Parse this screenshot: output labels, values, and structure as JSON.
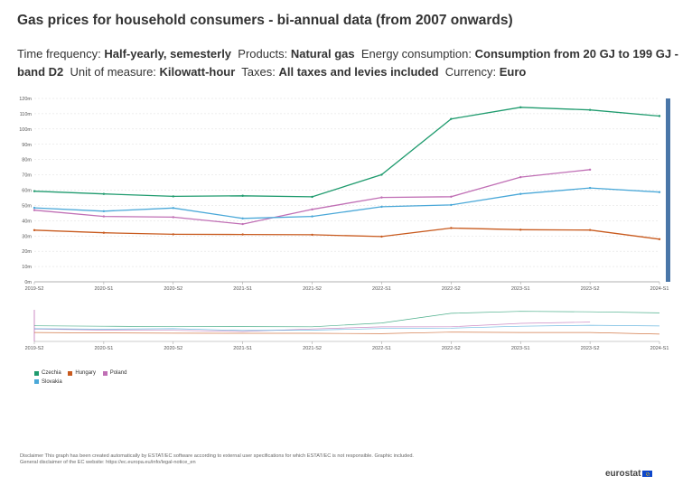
{
  "header": {
    "title": "Gas prices for household consumers - bi-annual data (from 2007 onwards)",
    "filters": [
      {
        "label": "Time frequency:",
        "value": "Half-yearly, semesterly"
      },
      {
        "label": "Products:",
        "value": "Natural gas"
      },
      {
        "label": "Energy consumption:",
        "value": "Consumption from 20 GJ to 199 GJ - band D2"
      },
      {
        "label": "Unit of measure:",
        "value": "Kilowatt-hour"
      },
      {
        "label": "Taxes:",
        "value": "All taxes and levies included"
      },
      {
        "label": "Currency:",
        "value": "Euro"
      }
    ]
  },
  "chart_data": {
    "type": "line",
    "categories": [
      "2019-S2",
      "2020-S1",
      "2020-S2",
      "2021-S1",
      "2021-S2",
      "2022-S1",
      "2022-S2",
      "2023-S1",
      "2023-S2",
      "2024-S1"
    ],
    "y_ticks": [
      "0m",
      "10m",
      "20m",
      "30m",
      "40m",
      "50m",
      "60m",
      "70m",
      "80m",
      "90m",
      "100m",
      "110m",
      "120m"
    ],
    "ylim": [
      0,
      0.12
    ],
    "series": [
      {
        "name": "Czechia",
        "color": "#1f9b6e",
        "values": [
          0.0593,
          0.0575,
          0.0559,
          0.0563,
          0.0556,
          0.0701,
          0.1066,
          0.1142,
          0.1125,
          0.1085
        ]
      },
      {
        "name": "Hungary",
        "color": "#c85a1e",
        "values": [
          0.0338,
          0.0321,
          0.0311,
          0.031,
          0.0308,
          0.0296,
          0.0352,
          0.0341,
          0.0339,
          0.0279
        ]
      },
      {
        "name": "Poland",
        "color": "#c06fb5",
        "values": [
          0.0469,
          0.0428,
          0.0423,
          0.0378,
          0.0474,
          0.0552,
          0.0557,
          0.0685,
          0.0734,
          null
        ]
      },
      {
        "name": "Slovakia",
        "color": "#4aa8d8",
        "values": [
          0.0484,
          0.0462,
          0.0483,
          0.0415,
          0.0428,
          0.0491,
          0.0503,
          0.0575,
          0.0614,
          0.0587
        ]
      }
    ]
  },
  "legend": {
    "items": [
      "Czechia",
      "Hungary",
      "Poland",
      "Slovakia"
    ]
  },
  "footer": {
    "disclaimer_line1": "Disclaimer This graph has been created automatically by ESTAT/EC software according to external user specifications for which ESTAT/EC is not responsible. Graphic included.",
    "disclaimer_line2": "General disclaimer of the EC website: https://ec.europa.eu/info/legal-notice_en",
    "logo_text": "eurostat"
  }
}
